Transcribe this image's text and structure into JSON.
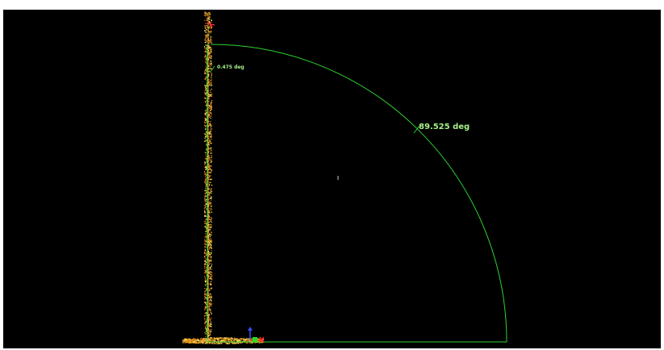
{
  "viewer": {
    "background_color": "#000000",
    "point_cloud_colors": {
      "dense": "#c86a14",
      "mid": "#e8941e",
      "highlight": "#ffd23c",
      "bright": "#fff07a"
    },
    "measurement_color": "#2fd12f",
    "label_color": "#a6f08a"
  },
  "measurements": {
    "small_angle_label": "0.475 deg",
    "large_angle_label": "89.525 deg"
  },
  "axis_gizmo": {
    "x_color": "#ff2020",
    "y_color": "#20e020",
    "z_color": "#3050ff"
  }
}
